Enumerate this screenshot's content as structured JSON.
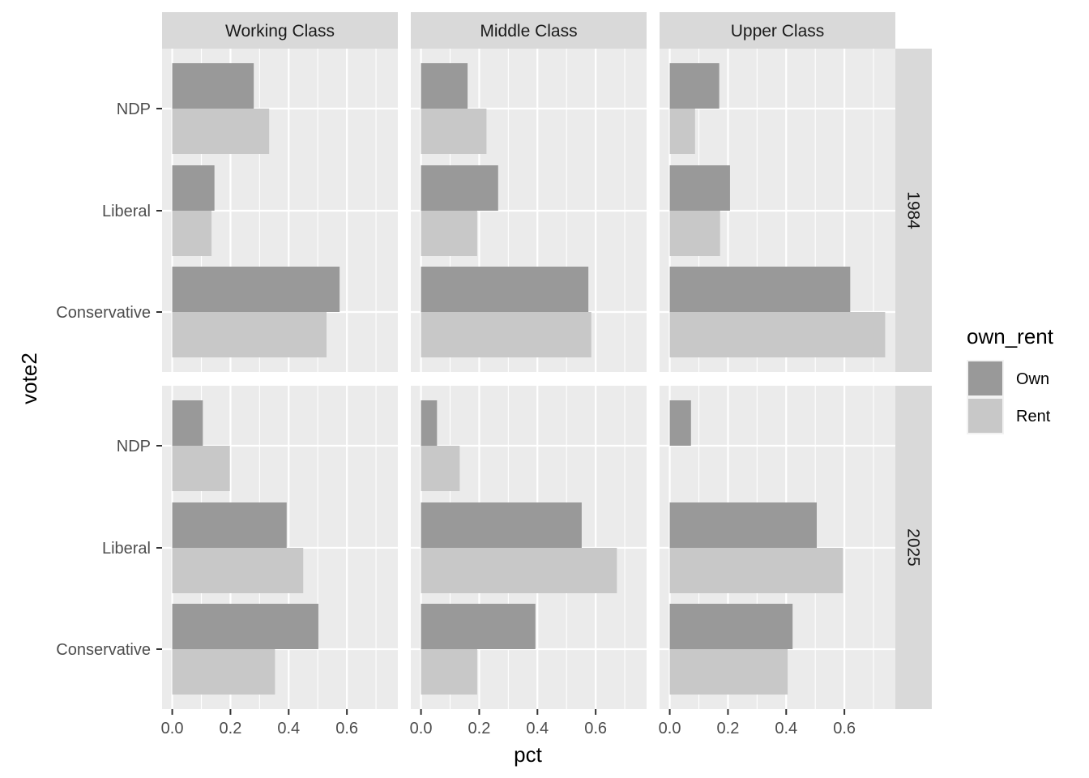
{
  "chart_data": {
    "type": "bar",
    "orientation": "horizontal",
    "x_label": "pct",
    "y_label": "vote2",
    "xlim": [
      -0.035,
      0.775
    ],
    "x_ticks": [
      0.0,
      0.2,
      0.4,
      0.6
    ],
    "x_tick_labels": [
      "0.0",
      "0.2",
      "0.4",
      "0.6"
    ],
    "categories": [
      "NDP",
      "Liberal",
      "Conservative"
    ],
    "columns": [
      "Working Class",
      "Middle Class",
      "Upper Class"
    ],
    "rows": [
      "1984",
      "2025"
    ],
    "legend": {
      "title": "own_rent",
      "position": "right",
      "items": [
        {
          "label": "Own",
          "color": "#999999"
        },
        {
          "label": "Rent",
          "color": "#c8c8c8"
        }
      ]
    },
    "panels": [
      {
        "row": "1984",
        "column": "Working Class",
        "series": [
          {
            "name": "Own",
            "values": [
              0.28,
              0.145,
              0.575
            ]
          },
          {
            "name": "Rent",
            "values": [
              0.333,
              0.135,
              0.53
            ]
          }
        ]
      },
      {
        "row": "1984",
        "column": "Middle Class",
        "series": [
          {
            "name": "Own",
            "values": [
              0.16,
              0.265,
              0.575
            ]
          },
          {
            "name": "Rent",
            "values": [
              0.225,
              0.193,
              0.585
            ]
          }
        ]
      },
      {
        "row": "1984",
        "column": "Upper Class",
        "series": [
          {
            "name": "Own",
            "values": [
              0.17,
              0.207,
              0.62
            ]
          },
          {
            "name": "Rent",
            "values": [
              0.087,
              0.173,
              0.74
            ]
          }
        ]
      },
      {
        "row": "2025",
        "column": "Working Class",
        "series": [
          {
            "name": "Own",
            "values": [
              0.105,
              0.393,
              0.502
            ]
          },
          {
            "name": "Rent",
            "values": [
              0.198,
              0.45,
              0.353
            ]
          }
        ]
      },
      {
        "row": "2025",
        "column": "Middle Class",
        "series": [
          {
            "name": "Own",
            "values": [
              0.055,
              0.552,
              0.393
            ]
          },
          {
            "name": "Rent",
            "values": [
              0.133,
              0.673,
              0.193
            ]
          }
        ]
      },
      {
        "row": "2025",
        "column": "Upper Class",
        "series": [
          {
            "name": "Own",
            "values": [
              0.073,
              0.505,
              0.422
            ]
          },
          {
            "name": "Rent",
            "values": [
              0.0,
              0.595,
              0.405
            ]
          }
        ]
      }
    ],
    "colors": {
      "panel_background": "#ebebeb",
      "grid": "#ffffff",
      "strip_background": "#d9d9d9"
    }
  }
}
